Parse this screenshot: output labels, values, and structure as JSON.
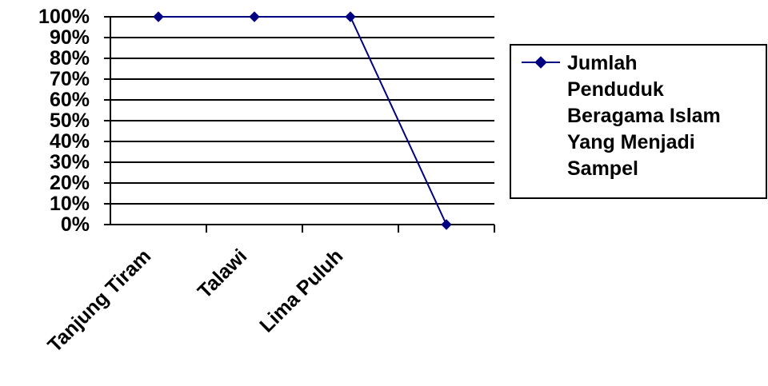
{
  "chart_data": {
    "type": "line",
    "categories": [
      "Tanjung Tiram",
      "Talawi",
      "Lima Puluh",
      ""
    ],
    "series": [
      {
        "name": "Jumlah Penduduk Beragama Islam Yang Menjadi Sampel",
        "values": [
          100,
          100,
          100,
          0
        ],
        "color": "#000080"
      }
    ],
    "ylim": [
      0,
      100
    ],
    "y_ticks": [
      "0%",
      "10%",
      "20%",
      "30%",
      "40%",
      "50%",
      "60%",
      "70%",
      "80%",
      "90%",
      "100%"
    ],
    "y_tick_values": [
      0,
      10,
      20,
      30,
      40,
      50,
      60,
      70,
      80,
      90,
      100
    ],
    "grid": true,
    "legend_position": "right",
    "legend_lines": [
      "Jumlah",
      "Penduduk",
      "Beragama Islam",
      "Yang Menjadi",
      "Sampel"
    ],
    "marker": "diamond"
  }
}
